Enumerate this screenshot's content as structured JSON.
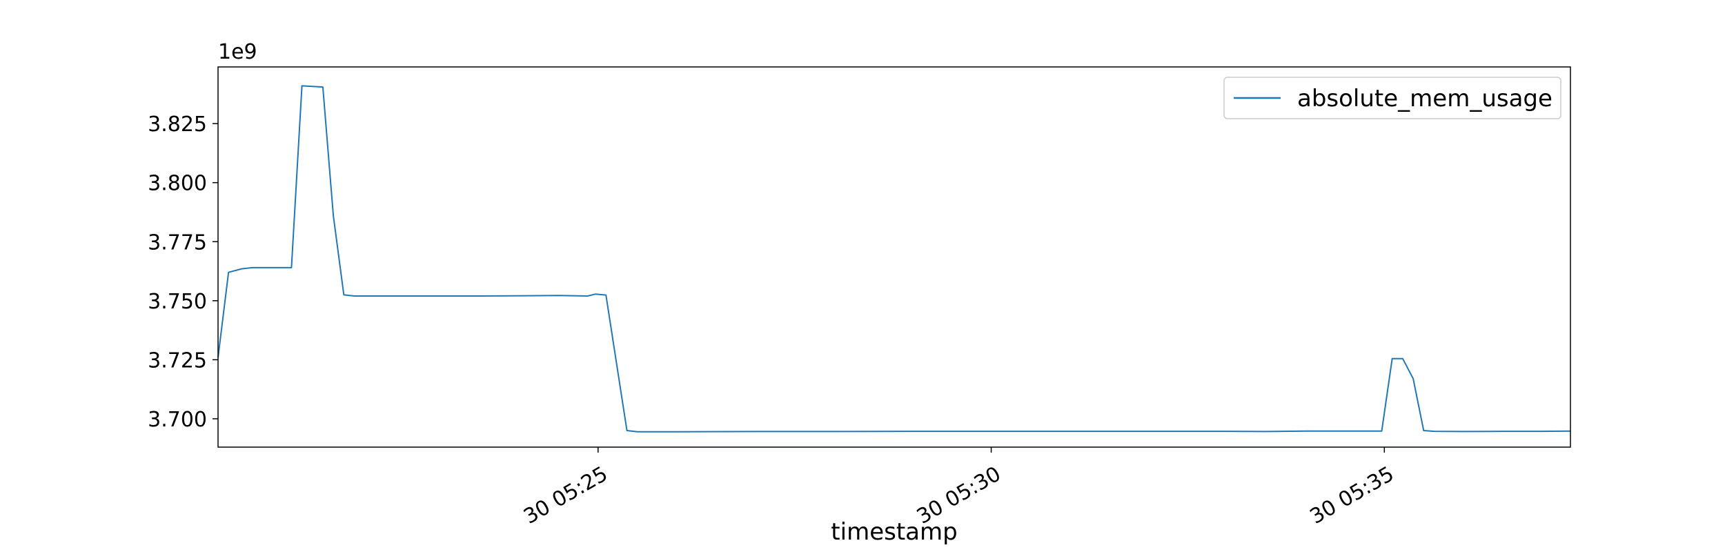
{
  "chart_data": {
    "type": "line",
    "title": "",
    "xlabel": "timestamp",
    "ylabel": "",
    "y_offset_label": "1e9",
    "y_scale": 1000000000,
    "xlim": [
      "2024-01-30T05:20:10",
      "2024-01-30T05:37:22"
    ],
    "ylim": [
      3688000000,
      3849000000
    ],
    "x_ticks": [
      {
        "value": "2024-01-30T05:25:00",
        "label": "30 05:25"
      },
      {
        "value": "2024-01-30T05:30:00",
        "label": "30 05:30"
      },
      {
        "value": "2024-01-30T05:35:00",
        "label": "30 05:35"
      }
    ],
    "y_ticks": [
      {
        "value": 3700000000,
        "label": "3.700"
      },
      {
        "value": 3725000000,
        "label": "3.725"
      },
      {
        "value": 3750000000,
        "label": "3.750"
      },
      {
        "value": 3775000000,
        "label": "3.775"
      },
      {
        "value": 3800000000,
        "label": "3.800"
      },
      {
        "value": 3825000000,
        "label": "3.825"
      }
    ],
    "grid": false,
    "legend": {
      "placement": "top-right"
    },
    "series": [
      {
        "name": "absolute_mem_usage",
        "color": "#1f77b4",
        "x": [
          "2024-01-30T05:20:10",
          "2024-01-30T05:20:18",
          "2024-01-30T05:20:28",
          "2024-01-30T05:20:36",
          "2024-01-30T05:21:06",
          "2024-01-30T05:21:14",
          "2024-01-30T05:21:30",
          "2024-01-30T05:21:38",
          "2024-01-30T05:21:46",
          "2024-01-30T05:21:54",
          "2024-01-30T05:22:02",
          "2024-01-30T05:22:30",
          "2024-01-30T05:23:30",
          "2024-01-30T05:24:30",
          "2024-01-30T05:24:52",
          "2024-01-30T05:24:58",
          "2024-01-30T05:25:06",
          "2024-01-30T05:25:22",
          "2024-01-30T05:25:30",
          "2024-01-30T05:26:00",
          "2024-01-30T05:27:00",
          "2024-01-30T05:28:00",
          "2024-01-30T05:29:00",
          "2024-01-30T05:30:00",
          "2024-01-30T05:31:00",
          "2024-01-30T05:32:00",
          "2024-01-30T05:33:00",
          "2024-01-30T05:33:30",
          "2024-01-30T05:34:00",
          "2024-01-30T05:34:58",
          "2024-01-30T05:35:06",
          "2024-01-30T05:35:14",
          "2024-01-30T05:35:22",
          "2024-01-30T05:35:30",
          "2024-01-30T05:35:38",
          "2024-01-30T05:36:00",
          "2024-01-30T05:36:30",
          "2024-01-30T05:37:00",
          "2024-01-30T05:37:22"
        ],
        "values": [
          3726000000,
          3762000000,
          3763500000,
          3764000000,
          3764000000,
          3841000000,
          3840500000,
          3786000000,
          3752500000,
          3752000000,
          3752000000,
          3752000000,
          3752000000,
          3752200000,
          3752000000,
          3752800000,
          3752400000,
          3695000000,
          3694500000,
          3694500000,
          3694600000,
          3694600000,
          3694700000,
          3694700000,
          3694700000,
          3694700000,
          3694700000,
          3694600000,
          3694800000,
          3694800000,
          3725500000,
          3725500000,
          3717000000,
          3695000000,
          3694700000,
          3694600000,
          3694700000,
          3694700000,
          3694800000
        ]
      }
    ]
  }
}
